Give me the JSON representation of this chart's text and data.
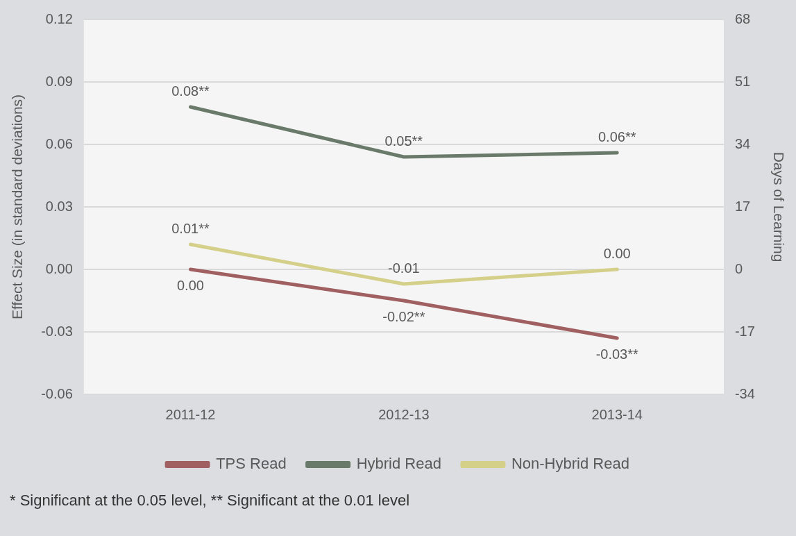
{
  "chart_data": {
    "type": "line",
    "categories": [
      "2011-12",
      "2012-13",
      "2013-14"
    ],
    "series": [
      {
        "name": "TPS Read",
        "color": "#a05f60",
        "values": [
          0.0,
          -0.015,
          -0.033
        ],
        "value_labels": [
          "0.00",
          "-0.02**",
          "-0.03**"
        ]
      },
      {
        "name": "Hybrid Read",
        "color": "#6a7a6a",
        "values": [
          0.078,
          0.054,
          0.056
        ],
        "value_labels": [
          "0.08**",
          "0.05**",
          "0.06**"
        ]
      },
      {
        "name": "Non-Hybrid Read",
        "color": "#d4d08a",
        "values": [
          0.012,
          -0.007,
          0.0
        ],
        "value_labels": [
          "0.01**",
          "-0.01",
          "0.00"
        ]
      }
    ],
    "ylabel": "Effect Size (in standard deviations)",
    "y2label": "Days of Learning",
    "ylim": [
      -0.06,
      0.12
    ],
    "yticks": [
      {
        "value": -0.06,
        "label": "-0.06"
      },
      {
        "value": -0.03,
        "label": "-0.03"
      },
      {
        "value": 0,
        "label": "0.00"
      },
      {
        "value": 0.03,
        "label": "0.03"
      },
      {
        "value": 0.06,
        "label": "0.06"
      },
      {
        "value": 0.09,
        "label": "0.09"
      },
      {
        "value": 0.12,
        "label": "0.12"
      }
    ],
    "y2lim": [
      -34,
      68
    ],
    "y2ticks": [
      -34,
      -17,
      0,
      17,
      34,
      51,
      68
    ],
    "grid": "y",
    "legend": "bottom",
    "marker": "none",
    "line_style": "solid",
    "annotations": [
      "* Significant at the 0.05 level, ** Significant at the 0.01 level"
    ]
  }
}
